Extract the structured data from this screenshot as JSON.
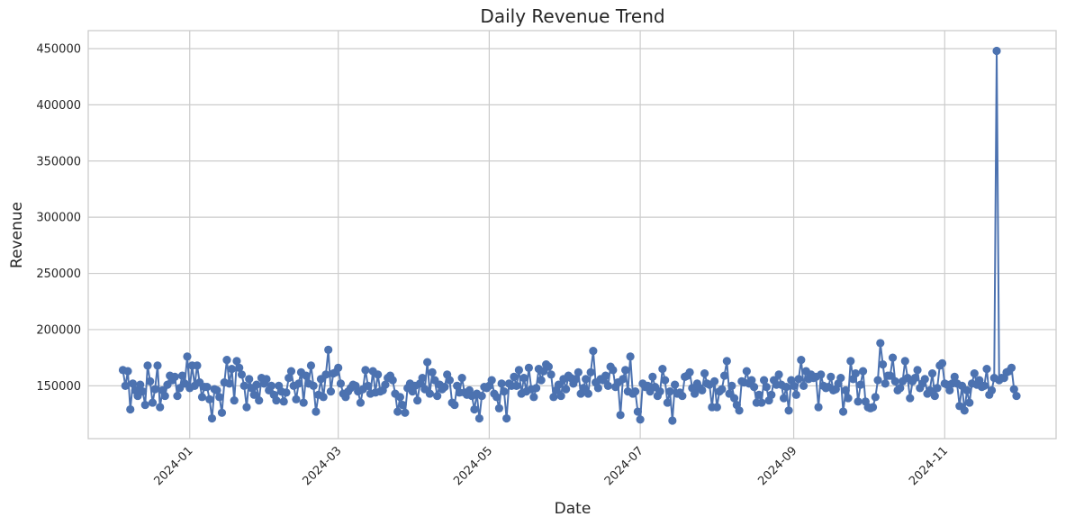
{
  "chart_data": {
    "type": "line",
    "title": "Daily Revenue Trend",
    "xlabel": "Date",
    "ylabel": "Revenue",
    "x_ticks": [
      {
        "date": "2024-01-01",
        "label": "2024-01"
      },
      {
        "date": "2024-03-01",
        "label": "2024-03"
      },
      {
        "date": "2024-05-01",
        "label": "2024-05"
      },
      {
        "date": "2024-07-01",
        "label": "2024-07"
      },
      {
        "date": "2024-09-01",
        "label": "2024-09"
      },
      {
        "date": "2024-11-01",
        "label": "2024-11"
      }
    ],
    "y_ticks": [
      {
        "value": 150000,
        "label": "150000"
      },
      {
        "value": 200000,
        "label": "200000"
      },
      {
        "value": 250000,
        "label": "250000"
      },
      {
        "value": 300000,
        "label": "300000"
      },
      {
        "value": 350000,
        "label": "350000"
      },
      {
        "value": 400000,
        "label": "400000"
      },
      {
        "value": 450000,
        "label": "450000"
      }
    ],
    "xlim": [
      "2023-11-21",
      "2024-12-16"
    ],
    "ylim": [
      103000,
      466000
    ],
    "grid": true,
    "color": "#4c72b0",
    "x_start": "2023-12-05",
    "y": [
      164000,
      150000,
      163000,
      129000,
      152000,
      146000,
      141000,
      151000,
      145000,
      133000,
      168000,
      154000,
      135000,
      147000,
      168000,
      131000,
      146000,
      141000,
      151000,
      159000,
      155000,
      158000,
      141000,
      148000,
      159000,
      152000,
      176000,
      148000,
      168000,
      150000,
      168000,
      153000,
      140000,
      149000,
      149000,
      138000,
      121000,
      147000,
      146000,
      140000,
      126000,
      153000,
      173000,
      152000,
      165000,
      137000,
      172000,
      166000,
      160000,
      150000,
      131000,
      156000,
      148000,
      142000,
      151000,
      137000,
      157000,
      152000,
      156000,
      146000,
      150000,
      142000,
      137000,
      150000,
      145000,
      136000,
      144000,
      157000,
      163000,
      150000,
      138000,
      152000,
      162000,
      135000,
      159000,
      152000,
      168000,
      150000,
      127000,
      142000,
      156000,
      140000,
      160000,
      182000,
      145000,
      161000,
      162000,
      166000,
      152000,
      143000,
      140000,
      145000,
      148000,
      151000,
      150000,
      145000,
      135000,
      147000,
      164000,
      150000,
      143000,
      163000,
      144000,
      160000,
      145000,
      146000,
      151000,
      157000,
      159000,
      155000,
      143000,
      127000,
      140000,
      133000,
      126000,
      148000,
      152000,
      145000,
      150000,
      137000,
      152000,
      157000,
      147000,
      171000,
      143000,
      162000,
      155000,
      141000,
      151000,
      147000,
      149000,
      160000,
      155000,
      135000,
      133000,
      150000,
      144000,
      157000,
      144000,
      142000,
      146000,
      141000,
      129000,
      143000,
      121000,
      141000,
      149000,
      148000,
      150000,
      155000,
      143000,
      140000,
      130000,
      152000,
      145000,
      121000,
      152000,
      150000,
      158000,
      150000,
      164000,
      143000,
      157000,
      145000,
      166000,
      147000,
      140000,
      148000,
      165000,
      155000,
      163000,
      169000,
      167000,
      160000,
      140000,
      146000,
      151000,
      141000,
      156000,
      147000,
      159000,
      157000,
      152000,
      156000,
      162000,
      143000,
      148000,
      156000,
      143000,
      162000,
      181000,
      153000,
      148000,
      156000,
      155000,
      159000,
      150000,
      167000,
      164000,
      149000,
      153000,
      124000,
      156000,
      164000,
      145000,
      176000,
      143000,
      145000,
      127000,
      120000,
      152000,
      149000,
      150000,
      145000,
      158000,
      149000,
      141000,
      145000,
      165000,
      155000,
      135000,
      145000,
      119000,
      151000,
      143000,
      144000,
      141000,
      158000,
      159000,
      162000,
      148000,
      143000,
      152000,
      148000,
      146000,
      161000,
      152000,
      151000,
      131000,
      154000,
      131000,
      145000,
      147000,
      159000,
      172000,
      143000,
      150000,
      139000,
      133000,
      128000,
      154000,
      153000,
      163000,
      152000,
      155000,
      149000,
      135000,
      142000,
      135000,
      155000,
      149000,
      137000,
      142000,
      155000,
      151000,
      160000,
      151000,
      139000,
      149000,
      128000,
      155000,
      150000,
      142000,
      156000,
      173000,
      150000,
      163000,
      156000,
      160000,
      157000,
      158000,
      131000,
      160000,
      150000,
      148000,
      149000,
      158000,
      146000,
      147000,
      152000,
      157000,
      127000,
      146000,
      139000,
      172000,
      156000,
      161000,
      136000,
      151000,
      163000,
      136000,
      131000,
      130000,
      131000,
      140000,
      155000,
      188000,
      169000,
      152000,
      159000,
      159000,
      175000,
      154000,
      146000,
      148000,
      154000,
      172000,
      157000,
      139000,
      154000,
      157000,
      164000,
      148000,
      152000,
      156000,
      143000,
      146000,
      161000,
      141000,
      148000,
      168000,
      170000,
      152000,
      151000,
      146000,
      152000,
      158000,
      152000,
      132000,
      150000,
      128000,
      146000,
      135000,
      152000,
      161000,
      151000,
      155000,
      149000,
      150000,
      165000,
      142000,
      146000,
      157000,
      448000,
      155000,
      157000,
      157000,
      162000,
      163000,
      166000,
      147000,
      141000
    ]
  }
}
